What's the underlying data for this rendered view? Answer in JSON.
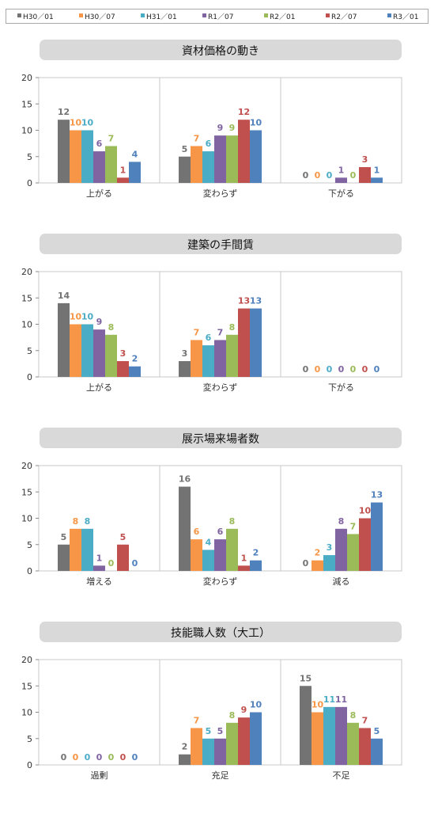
{
  "legend": [
    {
      "name": "H30／01",
      "color": "#737373"
    },
    {
      "name": "H30／07",
      "color": "#f79646"
    },
    {
      "name": "H31／01",
      "color": "#4bacc6"
    },
    {
      "name": "R1／07",
      "color": "#8064a2"
    },
    {
      "name": "R2／01",
      "color": "#9bbb59"
    },
    {
      "name": "R2／07",
      "color": "#c0504d"
    },
    {
      "name": "R3／01",
      "color": "#4f81bd"
    }
  ],
  "chart_data": [
    {
      "type": "bar",
      "title": "資材価格の動き",
      "categories": [
        "上がる",
        "変わらず",
        "下がる"
      ],
      "ylim": [
        0,
        20
      ],
      "yticks": [
        0,
        5,
        10,
        15,
        20
      ],
      "series": [
        {
          "name": "H30／01",
          "values": [
            12,
            5,
            0
          ]
        },
        {
          "name": "H30／07",
          "values": [
            10,
            7,
            0
          ]
        },
        {
          "name": "H31／01",
          "values": [
            10,
            6,
            0
          ]
        },
        {
          "name": "R1／07",
          "values": [
            6,
            9,
            1
          ]
        },
        {
          "name": "R2／01",
          "values": [
            7,
            9,
            0
          ]
        },
        {
          "name": "R2／07",
          "values": [
            1,
            12,
            3
          ]
        },
        {
          "name": "R3／01",
          "values": [
            4,
            10,
            1
          ]
        }
      ]
    },
    {
      "type": "bar",
      "title": "建築の手間賃",
      "categories": [
        "上がる",
        "変わらず",
        "下がる"
      ],
      "ylim": [
        0,
        20
      ],
      "yticks": [
        0,
        5,
        10,
        15,
        20
      ],
      "series": [
        {
          "name": "H30／01",
          "values": [
            14,
            3,
            0
          ]
        },
        {
          "name": "H30／07",
          "values": [
            10,
            7,
            0
          ]
        },
        {
          "name": "H31／01",
          "values": [
            10,
            6,
            0
          ]
        },
        {
          "name": "R1／07",
          "values": [
            9,
            7,
            0
          ]
        },
        {
          "name": "R2／01",
          "values": [
            8,
            8,
            0
          ]
        },
        {
          "name": "R2／07",
          "values": [
            3,
            13,
            0
          ]
        },
        {
          "name": "R3／01",
          "values": [
            2,
            13,
            0
          ]
        }
      ]
    },
    {
      "type": "bar",
      "title": "展示場来場者数",
      "categories": [
        "増える",
        "変わらず",
        "減る"
      ],
      "ylim": [
        0,
        20
      ],
      "yticks": [
        0,
        5,
        10,
        15,
        20
      ],
      "series": [
        {
          "name": "H30／01",
          "values": [
            5,
            16,
            0
          ]
        },
        {
          "name": "H30／07",
          "values": [
            8,
            6,
            2
          ]
        },
        {
          "name": "H31／01",
          "values": [
            8,
            4,
            3
          ]
        },
        {
          "name": "R1／07",
          "values": [
            1,
            6,
            8
          ]
        },
        {
          "name": "R2／01",
          "values": [
            0,
            8,
            7
          ]
        },
        {
          "name": "R2／07",
          "values": [
            5,
            1,
            10
          ]
        },
        {
          "name": "R3／01",
          "values": [
            0,
            2,
            13
          ]
        }
      ]
    },
    {
      "type": "bar",
      "title": "技能職人数（大工）",
      "categories": [
        "過剰",
        "充足",
        "不足"
      ],
      "ylim": [
        0,
        20
      ],
      "yticks": [
        0,
        5,
        10,
        15,
        20
      ],
      "series": [
        {
          "name": "H30／01",
          "values": [
            0,
            2,
            15
          ]
        },
        {
          "name": "H30／07",
          "values": [
            0,
            7,
            10
          ]
        },
        {
          "name": "H31／01",
          "values": [
            0,
            5,
            11
          ]
        },
        {
          "name": "R1／07",
          "values": [
            0,
            5,
            11
          ]
        },
        {
          "name": "R2／01",
          "values": [
            0,
            8,
            8
          ]
        },
        {
          "name": "R2／07",
          "values": [
            0,
            9,
            7
          ]
        },
        {
          "name": "R3／01",
          "values": [
            0,
            10,
            5
          ]
        }
      ]
    }
  ]
}
